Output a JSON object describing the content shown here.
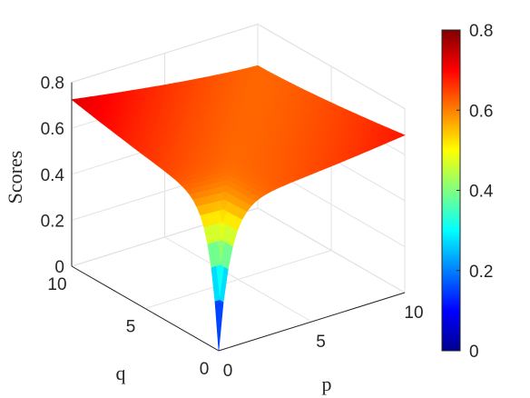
{
  "chart_data": {
    "type": "surface",
    "title": "",
    "xlabel": "p",
    "ylabel": "q",
    "zlabel": "Scores",
    "xlim": [
      0,
      10
    ],
    "ylim": [
      0,
      10
    ],
    "zlim": [
      0,
      0.8
    ],
    "x_ticks": [
      "0",
      "5",
      "10"
    ],
    "y_ticks": [
      "0",
      "5",
      "10"
    ],
    "z_ticks": [
      "0",
      "0.2",
      "0.4",
      "0.6",
      "0.8"
    ],
    "colormap": "jet",
    "colorbar": {
      "range": [
        0,
        0.8
      ],
      "ticks": [
        "0",
        "0.2",
        "0.4",
        "0.6",
        "0.8"
      ]
    },
    "grid": true,
    "surface_samples": {
      "description_of_axes": "z value at (p, q)",
      "points": [
        {
          "p": 0,
          "q": 0,
          "z": 0.0
        },
        {
          "p": 0.5,
          "q": 0.5,
          "z": 0.3
        },
        {
          "p": 2.5,
          "q": 2.5,
          "z": 0.57
        },
        {
          "p": 5,
          "q": 5,
          "z": 0.61
        },
        {
          "p": 10,
          "q": 10,
          "z": 0.63
        },
        {
          "p": 10,
          "q": 0,
          "z": 0.72
        },
        {
          "p": 0,
          "q": 10,
          "z": 0.75
        },
        {
          "p": 10,
          "q": 5,
          "z": 0.66
        },
        {
          "p": 5,
          "q": 10,
          "z": 0.66
        }
      ]
    },
    "colors": {
      "jet": [
        "#00008f",
        "#0000ff",
        "#0080ff",
        "#00ffff",
        "#80ff80",
        "#ffff00",
        "#ff8000",
        "#ff0000",
        "#800000"
      ]
    }
  }
}
